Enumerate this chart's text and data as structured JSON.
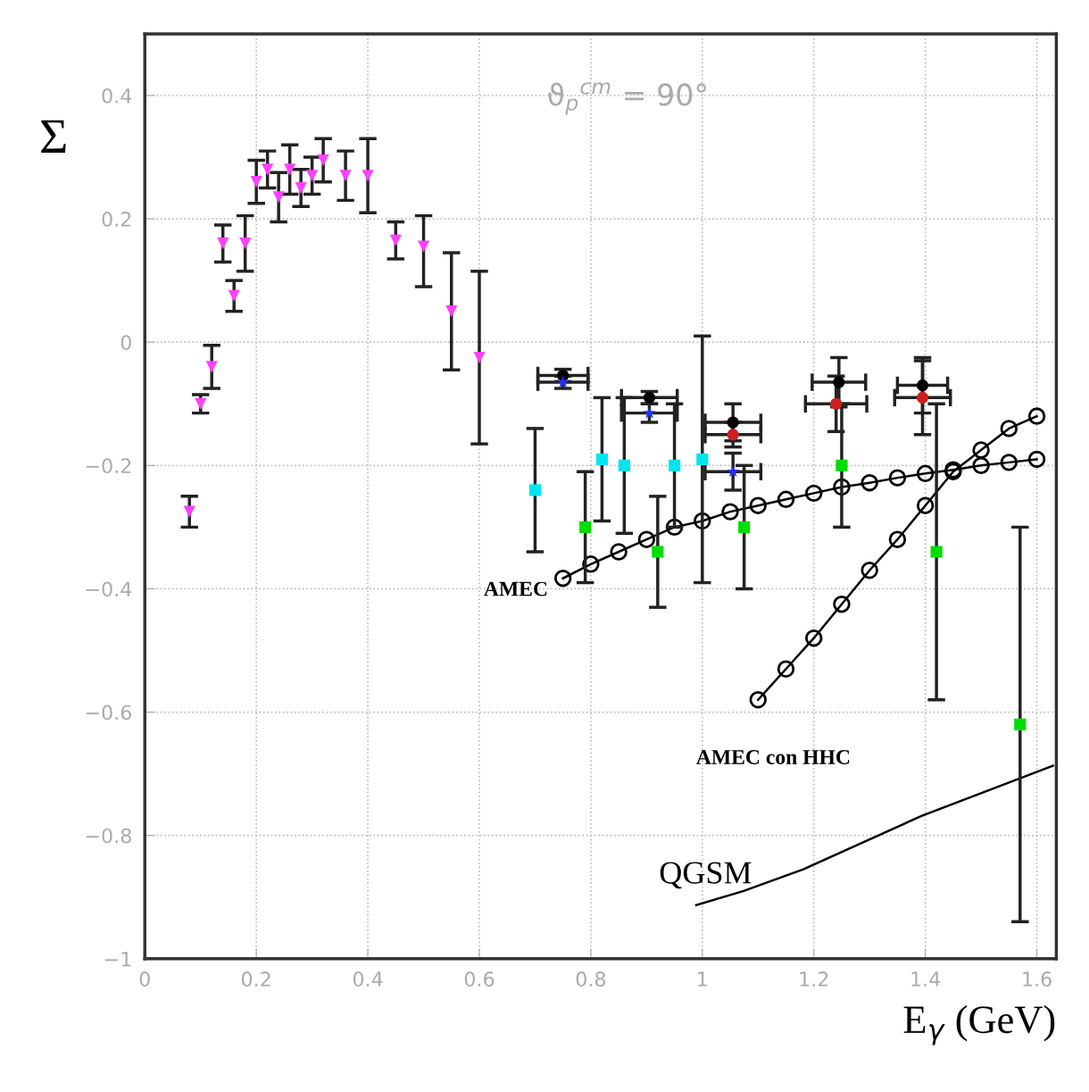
{
  "chart_data": {
    "type": "scatter",
    "xlabel": "E$_{γ}$ (GeV)",
    "ylabel": "Σ",
    "annotations": [
      "ϑ$_{p}$$^{cm}$ = 90°"
    ],
    "xlim": [
      0,
      1.635
    ],
    "ylim": [
      -1,
      0.5
    ],
    "xticks": [
      0,
      0.2,
      0.4,
      0.6,
      0.8,
      1,
      1.2,
      1.4,
      1.6
    ],
    "yticks": [
      {
        "value": -1,
        "label": "−1"
      },
      {
        "value": -0.8,
        "label": "−0.8"
      },
      {
        "value": -0.6,
        "label": "−0.6"
      },
      {
        "value": -0.4,
        "label": "−0.4"
      },
      {
        "value": -0.2,
        "label": "−0.2"
      },
      0,
      0.2,
      0.4
    ],
    "grid": true,
    "legend": false,
    "series": [
      {
        "type": "scatter",
        "marker": "triangle",
        "color": "#ff40ff",
        "x": [
          0.08,
          0.1,
          0.12,
          0.14,
          0.16,
          0.18,
          0.2,
          0.22,
          0.24,
          0.26,
          0.28,
          0.3,
          0.32,
          0.36,
          0.4,
          0.45,
          0.5,
          0.55,
          0.6
        ],
        "values": [
          -0.275,
          -0.1,
          -0.04,
          0.16,
          0.075,
          0.16,
          0.26,
          0.28,
          0.235,
          0.28,
          0.25,
          0.27,
          0.295,
          0.27,
          0.27,
          0.165,
          0.155,
          0.05,
          -0.025
        ],
        "errors": [
          0.025,
          0.015,
          0.035,
          0.03,
          0.025,
          0.045,
          0.035,
          0.03,
          0.04,
          0.04,
          0.03,
          0.03,
          0.035,
          0.04,
          0.06,
          0.03,
          [
            0.09,
            0.205
          ],
          0.095,
          0.14
        ]
      },
      {
        "type": "scatter",
        "marker": "square",
        "color": "#00e5ee",
        "x": [
          0.7,
          0.82,
          0.86,
          0.95,
          1.0
        ],
        "values": [
          -0.24,
          -0.19,
          -0.2,
          -0.2,
          -0.19
        ],
        "errors": [
          0.1,
          0.1,
          0.11,
          0.1,
          0.2
        ]
      },
      {
        "type": "scatter",
        "marker": "square",
        "color": "#00dd00",
        "x": [
          0.79,
          0.92,
          1.075,
          1.25,
          1.42,
          1.57
        ],
        "values": [
          -0.3,
          -0.34,
          -0.3,
          -0.2,
          -0.34,
          -0.62
        ],
        "errors": [
          0.09,
          0.09,
          0.1,
          0.1,
          0.24,
          0.32
        ]
      },
      {
        "type": "scatter",
        "marker": "circle",
        "color": "#000000",
        "x": [
          0.75,
          0.905,
          1.055,
          1.245,
          1.395
        ],
        "values": [
          -0.054,
          -0.09,
          -0.13,
          -0.065,
          -0.07
        ],
        "errors": [
          0.01,
          0.01,
          0.03,
          0.04,
          0.045
        ],
        "xerrors": [
          0.045,
          0.05,
          0.05,
          0.048,
          0.045
        ]
      },
      {
        "type": "scatter",
        "marker": "star",
        "color": "#2030ff",
        "x": [
          0.75,
          0.905,
          1.055
        ],
        "values": [
          -0.065,
          -0.115,
          -0.21
        ],
        "errors": [
          0.01,
          0.015,
          0.03
        ],
        "xerrors": [
          0.045,
          0.05,
          0.05
        ]
      },
      {
        "type": "scatter",
        "marker": "circle",
        "color": "#cc2020",
        "x": [
          1.055,
          1.24,
          1.395
        ],
        "values": [
          -0.15,
          -0.1,
          -0.09
        ],
        "errors": [
          0.02,
          0.045,
          0.06
        ],
        "xerrors": [
          0.05,
          0.055,
          0.05
        ]
      },
      {
        "type": "line",
        "name": "AMEC",
        "marker": "circle",
        "color": "#000000",
        "x": [
          0.75,
          0.8,
          0.85,
          0.9,
          0.95,
          1.0,
          1.05,
          1.1,
          1.15,
          1.2,
          1.25,
          1.3,
          1.35,
          1.4,
          1.45,
          1.5,
          1.55,
          1.6
        ],
        "values": [
          -0.383,
          -0.36,
          -0.34,
          -0.32,
          -0.3,
          -0.29,
          -0.275,
          -0.265,
          -0.255,
          -0.245,
          -0.235,
          -0.228,
          -0.22,
          -0.213,
          -0.207,
          -0.2,
          -0.195,
          -0.19
        ]
      },
      {
        "type": "line",
        "name": "AMEC con HHC",
        "marker": "circle",
        "color": "#000000",
        "x": [
          1.1,
          1.15,
          1.2,
          1.25,
          1.3,
          1.35,
          1.4,
          1.45,
          1.5,
          1.55,
          1.6
        ],
        "values": [
          -0.58,
          -0.53,
          -0.48,
          -0.425,
          -0.37,
          -0.32,
          -0.265,
          -0.21,
          -0.175,
          -0.14,
          -0.12
        ]
      },
      {
        "type": "line",
        "name": "QGSM",
        "marker": "none",
        "color": "#000000",
        "x": [
          0.989,
          1.074,
          1.181,
          1.394,
          1.629
        ],
        "values": [
          -0.913,
          -0.89,
          -0.855,
          -0.768,
          -0.687
        ]
      }
    ]
  }
}
